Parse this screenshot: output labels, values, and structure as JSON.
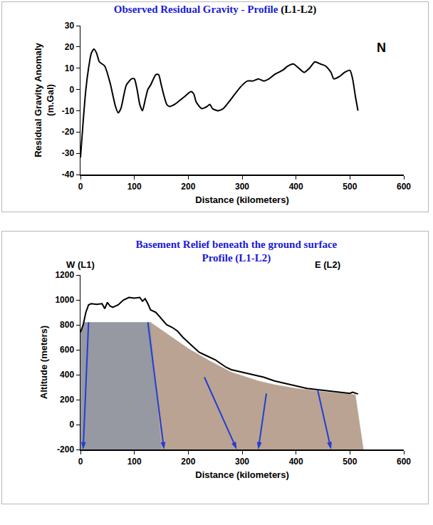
{
  "chart_data": [
    {
      "type": "line",
      "title": "Observed Residual Gravity - Profile (L1-L2)",
      "x_label": "Distance (kilometers)",
      "y_label": "Residual Gravity Anomaly (m.Gal)",
      "x": [
        0,
        5,
        10,
        15,
        20,
        25,
        30,
        35,
        45,
        55,
        65,
        70,
        75,
        85,
        95,
        100,
        105,
        110,
        115,
        120,
        125,
        130,
        140,
        145,
        150,
        155,
        160,
        165,
        175,
        185,
        195,
        205,
        210,
        215,
        225,
        235,
        240,
        245,
        255,
        265,
        275,
        290,
        300,
        310,
        320,
        330,
        340,
        350,
        360,
        375,
        385,
        395,
        405,
        415,
        425,
        435,
        445,
        455,
        465,
        470,
        480,
        490,
        500,
        505,
        510,
        515
      ],
      "values": [
        -32,
        -15,
        0,
        10,
        17,
        19,
        17,
        13,
        11,
        3,
        -8,
        -11,
        -9,
        2,
        5,
        5,
        0,
        -7,
        -10,
        -5,
        0,
        2,
        7,
        7,
        2,
        -3,
        -7,
        -8,
        -7,
        -5,
        -3,
        -1,
        -2,
        -6,
        -9,
        -8,
        -7,
        -9,
        -10,
        -9,
        -6,
        -1,
        2,
        4,
        4,
        5,
        4,
        5,
        7,
        9,
        11,
        12,
        10,
        8,
        10,
        13,
        12,
        11,
        8,
        5,
        6,
        8,
        9,
        5,
        -3,
        -10
      ],
      "color": "#000000",
      "xlim": [
        0,
        600
      ],
      "xticks": [
        0,
        100,
        200,
        300,
        400,
        500,
        600
      ],
      "ylim": [
        -40,
        30
      ],
      "yticks": [
        -40,
        -30,
        -20,
        -10,
        0,
        10,
        20,
        30
      ],
      "grid": false,
      "annotations": [
        "N"
      ]
    },
    {
      "type": "line",
      "title": "Basement Relief beneath the ground surface",
      "subtitle": "Profile (L1-L2)",
      "x_label": "Distance (kilometers)",
      "y_label": "Altitude (meters)",
      "annotations": [
        "W (L1)",
        "E (L2)"
      ],
      "xlim": [
        0,
        600
      ],
      "xticks": [
        0,
        100,
        200,
        300,
        400,
        500,
        600
      ],
      "ylim": [
        -200,
        1200
      ],
      "yticks": [
        -200,
        0,
        200,
        400,
        600,
        800,
        1000,
        1200
      ],
      "grid": false,
      "series": [
        {
          "type": "area",
          "color": "#8b8d99",
          "x": [
            0,
            0,
            5,
            130,
            150,
            0
          ],
          "values": [
            -200,
            730,
            820,
            820,
            -200,
            -200
          ]
        },
        {
          "type": "area",
          "color": "#b39a87",
          "x": [
            130,
            170,
            200,
            240,
            280,
            330,
            360,
            400,
            450,
            510,
            525,
            150,
            130
          ],
          "values": [
            820,
            700,
            610,
            510,
            420,
            350,
            320,
            290,
            265,
            240,
            -200,
            -200,
            820
          ]
        },
        {
          "type": "line",
          "color": "#000000",
          "x": [
            0,
            5,
            10,
            15,
            20,
            30,
            40,
            45,
            50,
            55,
            60,
            70,
            80,
            90,
            100,
            110,
            115,
            120,
            125,
            130,
            140,
            150,
            160,
            170,
            180,
            190,
            200,
            210,
            220,
            230,
            240,
            250,
            260,
            270,
            280,
            300,
            320,
            340,
            360,
            380,
            400,
            420,
            440,
            460,
            480,
            500,
            505,
            515
          ],
          "values": [
            740,
            800,
            900,
            960,
            970,
            965,
            970,
            930,
            980,
            950,
            940,
            960,
            1000,
            1020,
            1015,
            1020,
            990,
            1010,
            970,
            920,
            900,
            850,
            800,
            780,
            750,
            700,
            660,
            620,
            580,
            560,
            540,
            520,
            490,
            460,
            440,
            420,
            400,
            380,
            350,
            330,
            310,
            290,
            280,
            270,
            260,
            250,
            260,
            245
          ]
        },
        {
          "type": "line",
          "color": "#1f3fd6",
          "marker": "arrow",
          "x": [
            15,
            5
          ],
          "values": [
            820,
            -200
          ]
        },
        {
          "type": "line",
          "color": "#1f3fd6",
          "marker": "arrow",
          "x": [
            125,
            155
          ],
          "values": [
            820,
            -200
          ]
        },
        {
          "type": "line",
          "color": "#1f3fd6",
          "marker": "arrow",
          "x": [
            230,
            290
          ],
          "values": [
            380,
            -200
          ]
        },
        {
          "type": "line",
          "color": "#1f3fd6",
          "marker": "arrow",
          "x": [
            345,
            330
          ],
          "values": [
            250,
            -200
          ]
        },
        {
          "type": "line",
          "color": "#1f3fd6",
          "marker": "arrow",
          "x": [
            440,
            465
          ],
          "values": [
            280,
            -200
          ]
        }
      ]
    }
  ]
}
